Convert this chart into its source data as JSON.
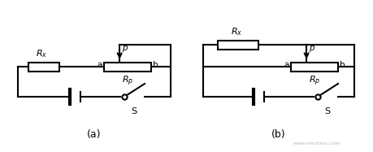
{
  "bg_color": "#ffffff",
  "line_color": "#000000",
  "line_width": 1.5,
  "fig_width": 4.6,
  "fig_height": 1.87,
  "label_a": "(a)",
  "label_b": "(b)",
  "watermark": "www.elecfans.com",
  "text_color": "#000000"
}
